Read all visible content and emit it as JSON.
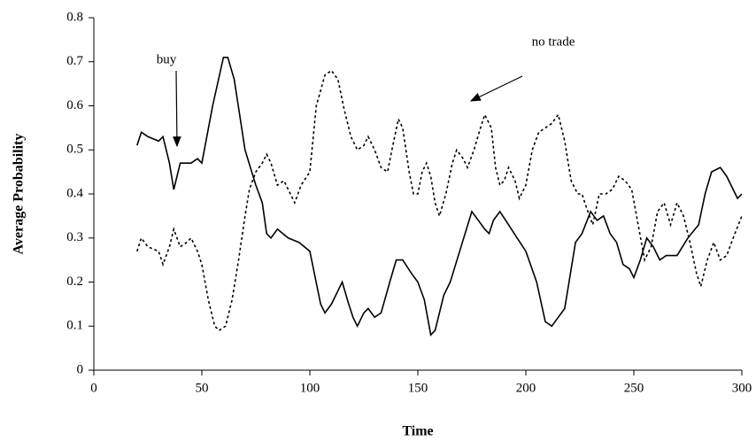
{
  "chart_data": {
    "type": "line",
    "xlabel": "Time",
    "ylabel": "Average Probability",
    "xlim": [
      0,
      300
    ],
    "xticks": [
      0,
      50,
      100,
      150,
      200,
      250,
      300
    ],
    "ylim": [
      0,
      0.8
    ],
    "yticks": [
      0,
      0.1,
      0.2,
      0.3,
      0.4,
      0.5,
      0.6,
      0.7,
      0.8
    ],
    "annotations": [
      "buy",
      "no trade"
    ],
    "series": [
      {
        "color": "#000000",
        "dash": "solid",
        "x": [
          20,
          22,
          25,
          30,
          32,
          35,
          37,
          40,
          45,
          48,
          50,
          55,
          60,
          62,
          65,
          70,
          75,
          78,
          80,
          82,
          85,
          90,
          95,
          100,
          105,
          107,
          110,
          115,
          118,
          120,
          122,
          125,
          127,
          130,
          133,
          137,
          140,
          143,
          147,
          150,
          153,
          156,
          158,
          162,
          165,
          170,
          175,
          178,
          181,
          183,
          185,
          188,
          192,
          196,
          200,
          205,
          209,
          212,
          215,
          218,
          220,
          223,
          226,
          230,
          233,
          236,
          239,
          242,
          245,
          248,
          250,
          253,
          256,
          259,
          262,
          265,
          270,
          275,
          280,
          283,
          286,
          290,
          293,
          296,
          298,
          300
        ],
        "values": [
          0.51,
          0.54,
          0.53,
          0.52,
          0.53,
          0.47,
          0.41,
          0.47,
          0.47,
          0.48,
          0.47,
          0.6,
          0.71,
          0.71,
          0.66,
          0.5,
          0.42,
          0.38,
          0.31,
          0.3,
          0.32,
          0.3,
          0.29,
          0.27,
          0.15,
          0.13,
          0.15,
          0.2,
          0.15,
          0.12,
          0.1,
          0.13,
          0.14,
          0.12,
          0.13,
          0.2,
          0.25,
          0.25,
          0.22,
          0.2,
          0.16,
          0.08,
          0.09,
          0.17,
          0.2,
          0.28,
          0.36,
          0.34,
          0.32,
          0.31,
          0.34,
          0.36,
          0.33,
          0.3,
          0.27,
          0.2,
          0.11,
          0.1,
          0.12,
          0.14,
          0.2,
          0.29,
          0.31,
          0.36,
          0.34,
          0.35,
          0.31,
          0.29,
          0.24,
          0.23,
          0.21,
          0.25,
          0.3,
          0.28,
          0.25,
          0.26,
          0.26,
          0.3,
          0.33,
          0.4,
          0.45,
          0.46,
          0.44,
          0.41,
          0.39,
          0.4
        ]
      },
      {
        "color": "#000000",
        "dash": "dotted",
        "x": [
          20,
          22,
          25,
          30,
          32,
          35,
          37,
          40,
          43,
          45,
          48,
          50,
          53,
          56,
          58,
          61,
          64,
          67,
          70,
          72,
          75,
          78,
          80,
          82,
          85,
          88,
          90,
          93,
          96,
          100,
          103,
          107,
          110,
          113,
          116,
          119,
          122,
          125,
          127,
          130,
          133,
          136,
          138,
          141,
          143,
          146,
          148,
          150,
          152,
          154,
          156,
          158,
          160,
          163,
          166,
          168,
          171,
          173,
          176,
          179,
          181,
          184,
          186,
          188,
          190,
          192,
          195,
          197,
          200,
          203,
          206,
          209,
          212,
          215,
          218,
          221,
          224,
          226,
          228,
          231,
          234,
          237,
          240,
          243,
          246,
          249,
          252,
          255,
          258,
          261,
          264,
          267,
          270,
          273,
          276,
          279,
          281,
          284,
          287,
          290,
          293,
          296,
          300
        ],
        "values": [
          0.27,
          0.3,
          0.28,
          0.27,
          0.24,
          0.28,
          0.32,
          0.28,
          0.29,
          0.3,
          0.27,
          0.24,
          0.16,
          0.1,
          0.09,
          0.1,
          0.16,
          0.25,
          0.35,
          0.41,
          0.45,
          0.47,
          0.49,
          0.47,
          0.42,
          0.43,
          0.41,
          0.38,
          0.42,
          0.45,
          0.6,
          0.67,
          0.68,
          0.66,
          0.59,
          0.53,
          0.5,
          0.51,
          0.53,
          0.5,
          0.46,
          0.45,
          0.5,
          0.57,
          0.55,
          0.45,
          0.4,
          0.4,
          0.45,
          0.47,
          0.44,
          0.38,
          0.35,
          0.4,
          0.47,
          0.5,
          0.48,
          0.46,
          0.5,
          0.55,
          0.58,
          0.55,
          0.46,
          0.42,
          0.43,
          0.46,
          0.43,
          0.39,
          0.42,
          0.5,
          0.54,
          0.55,
          0.56,
          0.58,
          0.52,
          0.43,
          0.4,
          0.4,
          0.37,
          0.33,
          0.4,
          0.4,
          0.41,
          0.44,
          0.43,
          0.41,
          0.33,
          0.25,
          0.28,
          0.36,
          0.38,
          0.33,
          0.38,
          0.35,
          0.29,
          0.22,
          0.19,
          0.25,
          0.29,
          0.25,
          0.26,
          0.3,
          0.35
        ]
      }
    ]
  }
}
